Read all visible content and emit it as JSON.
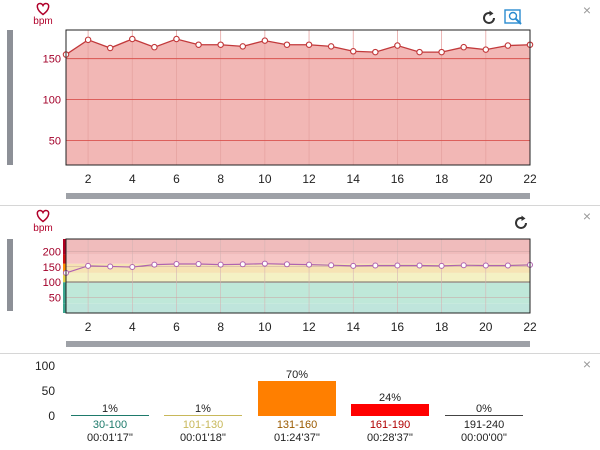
{
  "hr_panel": {
    "unit": "bpm",
    "close_label": "×",
    "chart_data": {
      "type": "area",
      "x": [
        1,
        2,
        3,
        4,
        5,
        6,
        7,
        8,
        9,
        10,
        11,
        12,
        13,
        14,
        15,
        16,
        17,
        18,
        19,
        20,
        21,
        22
      ],
      "series": [
        {
          "values": [
            155,
            173,
            163,
            174,
            164,
            174,
            167,
            167,
            165,
            172,
            167,
            167,
            165,
            159,
            158,
            166,
            158,
            158,
            164,
            161,
            166,
            167
          ]
        }
      ],
      "xticks": [
        2,
        4,
        6,
        8,
        10,
        12,
        14,
        16,
        18,
        20,
        22
      ],
      "yticks": [
        50,
        100,
        150
      ],
      "xlim": [
        1,
        22
      ],
      "ylim": [
        20,
        185
      ],
      "grid": true,
      "colors": {
        "line": "#c2393b",
        "fill": "#f2b7b5",
        "grid": "#d9534f"
      }
    }
  },
  "zones_panel": {
    "unit": "bpm",
    "close_label": "×",
    "chart_data": {
      "type": "line",
      "x": [
        1,
        2,
        3,
        4,
        5,
        6,
        7,
        8,
        9,
        10,
        11,
        12,
        13,
        14,
        15,
        16,
        17,
        18,
        19,
        20,
        21,
        22
      ],
      "series": [
        {
          "values": [
            130,
            153,
            151,
            149,
            157,
            159,
            159,
            157,
            158,
            160,
            158,
            157,
            155,
            153,
            154,
            154,
            154,
            153,
            155,
            154,
            154,
            156
          ]
        }
      ],
      "xticks": [
        2,
        4,
        6,
        8,
        10,
        12,
        14,
        16,
        18,
        20,
        22
      ],
      "yticks": [
        50,
        100,
        150,
        200
      ],
      "xlim": [
        1,
        22
      ],
      "ylim": [
        0,
        240
      ],
      "bands": [
        {
          "from": 0,
          "to": 30,
          "color": "#bfe5dc"
        },
        {
          "from": 30,
          "to": 100,
          "color": "#bfe8d9"
        },
        {
          "from": 100,
          "to": 130,
          "color": "#f4f1c4"
        },
        {
          "from": 130,
          "to": 160,
          "color": "#f6e3b4"
        },
        {
          "from": 160,
          "to": 190,
          "color": "#f6c6c6"
        },
        {
          "from": 190,
          "to": 240,
          "color": "#f0bcbc"
        }
      ],
      "colors": {
        "line": "#b063b0",
        "marker_edge": "#b063b0"
      }
    }
  },
  "zones_summary": {
    "close_label": "×",
    "chart_data": {
      "type": "bar",
      "categories": [
        "30-100",
        "101-130",
        "131-160",
        "161-190",
        "191-240"
      ],
      "values": [
        1,
        1,
        70,
        24,
        0
      ],
      "value_labels": [
        "1%",
        "1%",
        "70%",
        "24%",
        "0%"
      ],
      "durations": [
        "00:01'17''",
        "00:01'18''",
        "01:24'37''",
        "00:28'37''",
        "00:00'00''"
      ],
      "colors": [
        "#1e7a6b",
        "#c8b85a",
        "#ff7f00",
        "#ff0000",
        "#444444"
      ],
      "label_colors": [
        "#1e7a6b",
        "#c8b85a",
        "#9a5a00",
        "#b00000",
        "#222222"
      ],
      "yticks": [
        0,
        50,
        100
      ],
      "ylim": [
        0,
        100
      ]
    }
  }
}
